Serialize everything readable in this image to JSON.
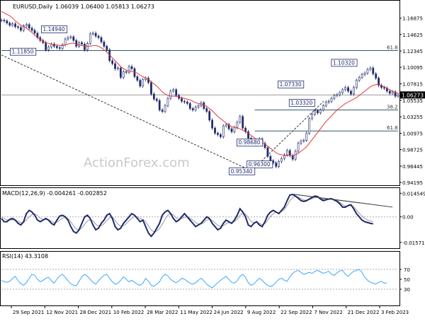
{
  "chart_data": {
    "type": "line",
    "panes": [
      {
        "id": "price",
        "header": {
          "symbol_label": "EURUSD,Daily",
          "ohlc_label": "1.06039 1.06400 1.05813 1.06273"
        },
        "ylim": [
          0.94,
          1.188
        ],
        "y_ticks": [
          "1.16875",
          "1.14625",
          "1.12345",
          "1.10095",
          "1.07815",
          "1.05535",
          "1.03255",
          "1.00975",
          "0.98725",
          "0.96445",
          "0.94195"
        ],
        "last_price_label": "1.06273",
        "last_price": 1.06273,
        "x_index": [
          0,
          357
        ],
        "close_series": [
          1.166,
          1.165,
          1.162,
          1.159,
          1.161,
          1.157,
          1.156,
          1.152,
          1.158,
          1.16,
          1.155,
          1.152,
          1.148,
          1.142,
          1.138,
          1.135,
          1.125,
          1.129,
          1.133,
          1.13,
          1.128,
          1.127,
          1.132,
          1.14,
          1.142,
          1.143,
          1.138,
          1.13,
          1.135,
          1.133,
          1.125,
          1.134,
          1.147,
          1.148,
          1.144,
          1.142,
          1.136,
          1.13,
          1.125,
          1.11,
          1.106,
          1.099,
          1.1,
          1.087,
          1.095,
          1.094,
          1.102,
          1.099,
          1.088,
          1.083,
          1.075,
          1.084,
          1.086,
          1.08,
          1.064,
          1.057,
          1.055,
          1.042,
          1.04,
          1.048,
          1.058,
          1.068,
          1.07,
          1.062,
          1.058,
          1.054,
          1.053,
          1.051,
          1.044,
          1.042,
          1.046,
          1.048,
          1.052,
          1.044,
          1.04,
          1.028,
          1.017,
          1.01,
          1.008,
          1.005,
          1.02,
          1.022,
          1.016,
          1.012,
          1.018,
          1.025,
          1.033,
          1.017,
          1.012,
          1.003,
          0.996,
          0.994,
          1.0,
          1.002,
          0.996,
          0.99,
          0.978,
          0.972,
          0.969,
          0.964,
          0.971,
          0.975,
          0.98,
          0.986,
          0.979,
          0.974,
          0.985,
          0.996,
          0.999,
          1.0,
          1.01,
          1.03,
          1.036,
          1.041,
          1.038,
          1.042,
          1.048,
          1.053,
          1.054,
          1.058,
          1.062,
          1.063,
          1.066,
          1.07,
          1.073,
          1.068,
          1.064,
          1.073,
          1.083,
          1.087,
          1.091,
          1.093,
          1.098,
          1.1,
          1.092,
          1.086,
          1.076,
          1.073,
          1.072,
          1.068,
          1.065,
          1.067,
          1.061,
          1.0627
        ],
        "ma_series": [
          1.178,
          1.176,
          1.174,
          1.172,
          1.169,
          1.165,
          1.162,
          1.159,
          1.157,
          1.155,
          1.152,
          1.149,
          1.145,
          1.142,
          1.14,
          1.137,
          1.135,
          1.134,
          1.133,
          1.132,
          1.132,
          1.131,
          1.131,
          1.132,
          1.133,
          1.134,
          1.134,
          1.133,
          1.132,
          1.131,
          1.13,
          1.13,
          1.13,
          1.131,
          1.131,
          1.13,
          1.128,
          1.125,
          1.122,
          1.118,
          1.114,
          1.11,
          1.106,
          1.102,
          1.099,
          1.097,
          1.096,
          1.095,
          1.094,
          1.093,
          1.09,
          1.088,
          1.086,
          1.084,
          1.081,
          1.078,
          1.075,
          1.071,
          1.067,
          1.064,
          1.062,
          1.061,
          1.061,
          1.061,
          1.06,
          1.059,
          1.058,
          1.057,
          1.056,
          1.054,
          1.052,
          1.051,
          1.05,
          1.049,
          1.047,
          1.044,
          1.041,
          1.037,
          1.033,
          1.03,
          1.027,
          1.024,
          1.021,
          1.019,
          1.018,
          1.017,
          1.016,
          1.014,
          1.012,
          1.01,
          1.007,
          1.004,
          1.001,
          0.999,
          0.997,
          0.995,
          0.992,
          0.989,
          0.986,
          0.983,
          0.981,
          0.98,
          0.979,
          0.979,
          0.979,
          0.979,
          0.98,
          0.982,
          0.985,
          0.988,
          0.991,
          0.996,
          1.001,
          1.006,
          1.011,
          1.016,
          1.021,
          1.026,
          1.03,
          1.034,
          1.038,
          1.042,
          1.045,
          1.048,
          1.051,
          1.053,
          1.055,
          1.057,
          1.059,
          1.062,
          1.065,
          1.068,
          1.071,
          1.074,
          1.076,
          1.077,
          1.077,
          1.076,
          1.074,
          1.072,
          1.07,
          1.068,
          1.066,
          1.065,
          1.064,
          1.063
        ],
        "horizontal_lines": [
          {
            "name": "level-61-8-top",
            "y": 1.124,
            "label": "61.8",
            "x_from": 0,
            "x_to": 357,
            "color": "#355a6e"
          },
          {
            "name": "level-1-06273",
            "y": 1.06273,
            "label": "",
            "x_from": 0,
            "x_to": 357,
            "color": "#9a9a9a"
          },
          {
            "name": "level-38-2",
            "y": 1.042,
            "label": "38.2",
            "x_from": 228,
            "x_to": 357,
            "color": "#355a6e"
          },
          {
            "name": "level-61-8-mid",
            "y": 1.013,
            "label": "61.8",
            "x_from": 228,
            "x_to": 357,
            "color": "#355a6e"
          }
        ],
        "trendlines": [
          {
            "name": "long-dashed-trendline",
            "from": [
              0,
              1.118
            ],
            "to": [
              225,
              0.958
            ],
            "style": "dashed",
            "color": "#333333"
          },
          {
            "name": "rising-dashed-trendline",
            "from": [
              227,
              0.961
            ],
            "to": [
              290,
              1.054
            ],
            "style": "dashed",
            "color": "#333333"
          }
        ],
        "annotations": [
          {
            "label": "1.14940",
            "x": 36,
            "y": 1.1494
          },
          {
            "label": "1.11850",
            "x": 8,
            "y": 1.1185
          },
          {
            "label": "1.07330",
            "x": 249,
            "y": 1.0733
          },
          {
            "label": "1.03320",
            "x": 259,
            "y": 1.048
          },
          {
            "label": "0.98680",
            "x": 212,
            "y": 0.993
          },
          {
            "label": "0.96300",
            "x": 221,
            "y": 0.963
          },
          {
            "label": "0.95340",
            "x": 205,
            "y": 0.9534
          },
          {
            "label": "1.10320",
            "x": 297,
            "y": 1.1032
          }
        ]
      },
      {
        "id": "macd",
        "header_label": "MACD(12,26,9) -0.004261 -0.002852",
        "ylim": [
          -0.018,
          0.016
        ],
        "y_ticks": [
          "0.014549",
          "0.00",
          "-0.015712"
        ],
        "macd_series": [
          -0.001,
          -0.003,
          -0.003,
          -0.0015,
          -0.001,
          -0.002,
          -0.004,
          -0.005,
          -0.003,
          0.002,
          0.004,
          0.003,
          0.001,
          -0.002,
          -0.003,
          -0.002,
          -0.001,
          -0.002,
          -0.004,
          -0.005,
          -0.002,
          0.0005,
          0.001,
          0.0,
          -0.002,
          -0.006,
          -0.009,
          -0.01,
          -0.008,
          -0.004,
          0.0,
          0.001,
          -0.001,
          -0.005,
          -0.008,
          -0.007,
          -0.004,
          -0.002,
          0.001,
          0.002,
          -0.001,
          -0.006,
          -0.008,
          -0.007,
          -0.004,
          -0.002,
          0.0,
          0.002,
          0.001,
          -0.001,
          -0.003,
          -0.002,
          -0.006,
          -0.01,
          -0.012,
          -0.01,
          -0.007,
          -0.004,
          0.001,
          0.003,
          0.004,
          0.002,
          -0.001,
          -0.003,
          -0.002,
          0.0,
          0.002,
          0.0,
          -0.002,
          -0.004,
          -0.006,
          -0.005,
          -0.004,
          -0.002,
          0.0,
          -0.001,
          -0.004,
          -0.006,
          -0.008,
          -0.007,
          -0.004,
          -0.002,
          -0.003,
          -0.004,
          -0.002,
          0.001,
          0.005,
          0.003,
          0.0,
          -0.005,
          -0.006,
          -0.004,
          -0.003,
          -0.005,
          -0.006,
          -0.003,
          0.001,
          0.003,
          0.004,
          0.003,
          0.002,
          0.004,
          0.006,
          0.01,
          0.0135,
          0.0138,
          0.0128,
          0.0115,
          0.01,
          0.0095,
          0.01,
          0.011,
          0.012,
          0.0128,
          0.0125,
          0.011,
          0.01,
          0.0105,
          0.011,
          0.0112,
          0.0104,
          0.0095,
          0.008,
          0.006,
          0.006,
          0.007,
          0.0075,
          0.005,
          0.002,
          0.0,
          -0.002,
          -0.003,
          -0.0035,
          -0.004,
          -0.0043
        ],
        "signal_series": [
          0.0,
          -0.001,
          -0.002,
          -0.002,
          -0.0018,
          -0.002,
          -0.0028,
          -0.0036,
          -0.0035,
          -0.002,
          0.0,
          0.0015,
          0.0018,
          0.0008,
          -0.0008,
          -0.0016,
          -0.0016,
          -0.0018,
          -0.0026,
          -0.0036,
          -0.0032,
          -0.002,
          -0.0008,
          -0.0003,
          -0.001,
          -0.003,
          -0.0055,
          -0.0075,
          -0.008,
          -0.0068,
          -0.0046,
          -0.0025,
          -0.0015,
          -0.0025,
          -0.0045,
          -0.0058,
          -0.0055,
          -0.0042,
          -0.0022,
          -0.0005,
          -0.0002,
          -0.0022,
          -0.0045,
          -0.0058,
          -0.0055,
          -0.0042,
          -0.0025,
          -0.0008,
          0.0002,
          0.0002,
          -0.001,
          -0.0016,
          -0.003,
          -0.0055,
          -0.008,
          -0.0092,
          -0.0088,
          -0.0072,
          -0.0045,
          -0.0015,
          0.001,
          0.002,
          0.0012,
          -0.0005,
          -0.0015,
          -0.0012,
          -0.0002,
          0.0,
          -0.0008,
          -0.002,
          -0.0036,
          -0.0044,
          -0.0044,
          -0.0036,
          -0.002,
          -0.0014,
          -0.0022,
          -0.0036,
          -0.0052,
          -0.006,
          -0.0055,
          -0.0042,
          -0.0036,
          -0.0036,
          -0.003,
          -0.0015,
          0.001,
          0.0022,
          0.0018,
          -0.0005,
          -0.0028,
          -0.0036,
          -0.0034,
          -0.004,
          -0.0048,
          -0.0042,
          -0.002,
          0.0002,
          0.002,
          0.0028,
          0.0026,
          0.0032,
          0.0045,
          0.007,
          0.01,
          0.012,
          0.0126,
          0.0122,
          0.0112,
          0.0104,
          0.0102,
          0.0106,
          0.0112,
          0.012,
          0.0122,
          0.0116,
          0.0108,
          0.0106,
          0.0108,
          0.011,
          0.0107,
          0.0101,
          0.009,
          0.0075,
          0.0066,
          0.0066,
          0.007,
          0.0062,
          0.0042,
          0.0022,
          0.0005,
          -0.001,
          -0.002,
          -0.0026,
          -0.0029
        ],
        "dashed_trendline": {
          "from": [
            105,
            0.014
          ],
          "to": [
            141,
            0.006
          ]
        }
      },
      {
        "id": "rsi",
        "header_label": "RSI(14) 43.3108",
        "ylim": [
          0,
          100
        ],
        "y_ticks": [
          "70",
          "50",
          "30"
        ],
        "levels": [
          70,
          30
        ],
        "rsi_series": [
          48,
          45,
          44,
          46,
          52,
          56,
          47,
          41,
          38,
          43,
          52,
          60,
          58,
          50,
          45,
          48,
          52,
          54,
          47,
          42,
          50,
          57,
          60,
          54,
          47,
          41,
          38,
          37,
          46,
          55,
          60,
          56,
          50,
          44,
          40,
          47,
          53,
          58,
          60,
          52,
          45,
          40,
          42,
          48,
          55,
          50,
          45,
          48,
          44,
          40,
          38,
          42,
          52,
          46,
          38,
          36,
          40,
          45,
          55,
          60,
          57,
          50,
          46,
          43,
          47,
          52,
          50,
          46,
          42,
          40,
          43,
          48,
          52,
          47,
          40,
          36,
          33,
          38,
          43,
          48,
          52,
          56,
          50,
          44,
          42,
          47,
          56,
          60,
          54,
          43,
          38,
          40,
          47,
          52,
          48,
          42,
          38,
          35,
          38,
          44,
          50,
          52,
          48,
          46,
          55,
          62,
          66,
          68,
          64,
          60,
          62,
          64,
          62,
          66,
          68,
          65,
          62,
          64,
          66,
          60,
          58,
          63,
          67,
          68,
          60,
          56,
          62,
          66,
          68,
          70,
          64,
          54,
          48,
          44,
          42,
          40,
          44,
          46,
          42,
          43
        ]
      }
    ],
    "x_tick_labels": [
      "29 Sep 2021",
      "12 Nov 2021",
      "28 Dec 2021",
      "10 Feb 2022",
      "28 Mar 2022",
      "11 May 2022",
      "24 Jun 2022",
      "9 Aug 2022",
      "22 Sep 2022",
      "7 Nov 2022",
      "21 Dec 2022",
      "3 Feb 2023"
    ],
    "colors": {
      "up_candle": "#1f2a6b",
      "down_candle": "#1f2a6b",
      "price": "#1f2a6b",
      "moving_average": "#e33a3a",
      "macd": "#1f2a6b",
      "macd_signal": "#9a9a9a",
      "rsi": "#39a7ff",
      "grid_panel": "#ffffff",
      "axis": "#000000"
    },
    "watermark": "ActionForex.com"
  }
}
